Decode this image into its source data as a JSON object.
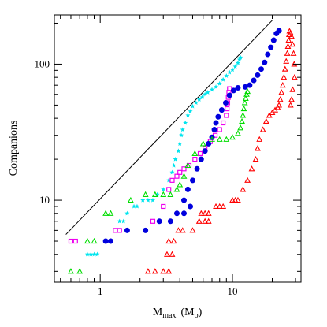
{
  "chart_data": {
    "type": "scatter",
    "title": "",
    "xlabel": "M",
    "xlabel_subscript": "max",
    "xlabel_unit_open": "(M",
    "xlabel_unit_subscript": "o",
    "xlabel_unit_close": ")",
    "ylabel": "Companions",
    "xscale": "log",
    "yscale": "log",
    "xlim": [
      0.45,
      33
    ],
    "ylim": [
      2.5,
      230
    ],
    "x_ticks": [
      1,
      10
    ],
    "x_tick_labels": [
      "1",
      "10"
    ],
    "y_ticks": [
      10,
      100
    ],
    "y_tick_labels": [
      "10",
      "100"
    ],
    "grid": false,
    "reference_line": {
      "x": [
        0.55,
        20
      ],
      "y": [
        5.6,
        210
      ],
      "color": "#000000"
    },
    "series": [
      {
        "color": "#00e5ee",
        "marker": "star",
        "points": [
          [
            0.8,
            4
          ],
          [
            0.85,
            4
          ],
          [
            0.9,
            4
          ],
          [
            0.95,
            4
          ],
          [
            1.2,
            5
          ],
          [
            1.4,
            7
          ],
          [
            1.5,
            7
          ],
          [
            1.6,
            8
          ],
          [
            1.8,
            9
          ],
          [
            1.9,
            9
          ],
          [
            2.1,
            10
          ],
          [
            2.3,
            10
          ],
          [
            2.5,
            10
          ],
          [
            2.7,
            11
          ],
          [
            3.0,
            12
          ],
          [
            3.3,
            14
          ],
          [
            3.5,
            16
          ],
          [
            3.6,
            18
          ],
          [
            3.7,
            20
          ],
          [
            3.9,
            23
          ],
          [
            4.0,
            26
          ],
          [
            4.1,
            30
          ],
          [
            4.2,
            33
          ],
          [
            4.4,
            37
          ],
          [
            4.6,
            42
          ],
          [
            4.8,
            45
          ],
          [
            5.0,
            49
          ],
          [
            5.3,
            52
          ],
          [
            5.6,
            55
          ],
          [
            5.9,
            57
          ],
          [
            6.2,
            60
          ],
          [
            6.5,
            62
          ],
          [
            7.0,
            65
          ],
          [
            7.5,
            68
          ],
          [
            8.0,
            72
          ],
          [
            8.5,
            77
          ],
          [
            9.0,
            82
          ],
          [
            9.5,
            87
          ],
          [
            10,
            91
          ],
          [
            10.5,
            96
          ],
          [
            11,
            102
          ],
          [
            11.3,
            108
          ],
          [
            11.5,
            112
          ]
        ]
      },
      {
        "color": "#ee00ee",
        "marker": "square",
        "points": [
          [
            0.6,
            5
          ],
          [
            0.65,
            5
          ],
          [
            1.3,
            6
          ],
          [
            1.4,
            6
          ],
          [
            2.5,
            7
          ],
          [
            3.0,
            9
          ],
          [
            3.3,
            12
          ],
          [
            3.5,
            14
          ],
          [
            3.8,
            15
          ],
          [
            4.0,
            16
          ],
          [
            4.3,
            17
          ],
          [
            4.7,
            18
          ],
          [
            5.2,
            20
          ],
          [
            5.7,
            22
          ],
          [
            6.2,
            24
          ],
          [
            6.8,
            27
          ],
          [
            7.4,
            30
          ],
          [
            8.0,
            33
          ],
          [
            8.5,
            37
          ],
          [
            9.0,
            42
          ],
          [
            9.1,
            47
          ],
          [
            9.2,
            52
          ],
          [
            9.3,
            57
          ],
          [
            9.4,
            62
          ],
          [
            9.5,
            66
          ]
        ]
      },
      {
        "color": "#0000dd",
        "marker": "circle",
        "points": [
          [
            1.1,
            5
          ],
          [
            1.2,
            5
          ],
          [
            1.6,
            6
          ],
          [
            2.2,
            6
          ],
          [
            2.8,
            7
          ],
          [
            3.4,
            7
          ],
          [
            3.8,
            8
          ],
          [
            4.3,
            8
          ],
          [
            4.8,
            9
          ],
          [
            4.3,
            10
          ],
          [
            4.6,
            12
          ],
          [
            5.0,
            14
          ],
          [
            5.4,
            17
          ],
          [
            5.8,
            20
          ],
          [
            6.2,
            23
          ],
          [
            6.6,
            26
          ],
          [
            7.0,
            29
          ],
          [
            7.3,
            33
          ],
          [
            7.5,
            37
          ],
          [
            7.8,
            41
          ],
          [
            8.3,
            46
          ],
          [
            8.9,
            52
          ],
          [
            9.5,
            59
          ],
          [
            10.2,
            64
          ],
          [
            11,
            67
          ],
          [
            12.5,
            68
          ],
          [
            13.5,
            70
          ],
          [
            14.5,
            76
          ],
          [
            15.5,
            83
          ],
          [
            16.5,
            92
          ],
          [
            17.5,
            103
          ],
          [
            18.5,
            118
          ],
          [
            19.5,
            133
          ],
          [
            20.5,
            150
          ],
          [
            21.5,
            168
          ],
          [
            22.5,
            176
          ]
        ]
      },
      {
        "color": "#00dd00",
        "marker": "triangle",
        "points": [
          [
            0.6,
            3
          ],
          [
            0.7,
            3
          ],
          [
            0.8,
            5
          ],
          [
            0.9,
            5
          ],
          [
            1.1,
            8
          ],
          [
            1.2,
            8
          ],
          [
            1.7,
            10
          ],
          [
            2.2,
            11
          ],
          [
            2.6,
            11
          ],
          [
            3.0,
            11
          ],
          [
            3.4,
            11
          ],
          [
            3.8,
            12
          ],
          [
            4.0,
            13
          ],
          [
            4.3,
            15
          ],
          [
            4.6,
            18
          ],
          [
            5.2,
            22
          ],
          [
            6.0,
            26
          ],
          [
            7.0,
            28
          ],
          [
            8.0,
            28
          ],
          [
            9.0,
            28
          ],
          [
            10,
            29
          ],
          [
            11,
            31
          ],
          [
            11.5,
            34
          ],
          [
            11.8,
            38
          ],
          [
            12.0,
            42
          ],
          [
            12.2,
            47
          ],
          [
            12.4,
            52
          ],
          [
            12.6,
            56
          ],
          [
            12.8,
            60
          ],
          [
            13.0,
            63
          ]
        ]
      },
      {
        "color": "#ff0000",
        "marker": "triangle",
        "points": [
          [
            2.3,
            3
          ],
          [
            2.6,
            3
          ],
          [
            3.0,
            3
          ],
          [
            3.3,
            3
          ],
          [
            3.2,
            4
          ],
          [
            3.5,
            4
          ],
          [
            3.3,
            5
          ],
          [
            3.6,
            5
          ],
          [
            3.9,
            6
          ],
          [
            4.2,
            6
          ],
          [
            5.0,
            6
          ],
          [
            5.6,
            7
          ],
          [
            6.2,
            7
          ],
          [
            6.6,
            7
          ],
          [
            5.8,
            8
          ],
          [
            6.2,
            8
          ],
          [
            6.6,
            8
          ],
          [
            7.5,
            9
          ],
          [
            8.0,
            9
          ],
          [
            8.5,
            9
          ],
          [
            10,
            10
          ],
          [
            10.5,
            10
          ],
          [
            11,
            10
          ],
          [
            12,
            12
          ],
          [
            13,
            14
          ],
          [
            14,
            17
          ],
          [
            15,
            20
          ],
          [
            15.5,
            24
          ],
          [
            16,
            28
          ],
          [
            17,
            33
          ],
          [
            18,
            38
          ],
          [
            19,
            42
          ],
          [
            20,
            44
          ],
          [
            21,
            46
          ],
          [
            22,
            48
          ],
          [
            22.5,
            50
          ],
          [
            23,
            55
          ],
          [
            23.5,
            62
          ],
          [
            24,
            70
          ],
          [
            24.5,
            80
          ],
          [
            25,
            92
          ],
          [
            25.5,
            105
          ],
          [
            26,
            120
          ],
          [
            26.3,
            135
          ],
          [
            26.6,
            150
          ],
          [
            26.8,
            165
          ],
          [
            27,
            175
          ],
          [
            27.5,
            170
          ],
          [
            28,
            160
          ],
          [
            28.5,
            140
          ],
          [
            29,
            120
          ],
          [
            29.3,
            100
          ],
          [
            29.5,
            80
          ],
          [
            28.5,
            65
          ],
          [
            28,
            55
          ],
          [
            27.5,
            50
          ]
        ]
      }
    ]
  }
}
